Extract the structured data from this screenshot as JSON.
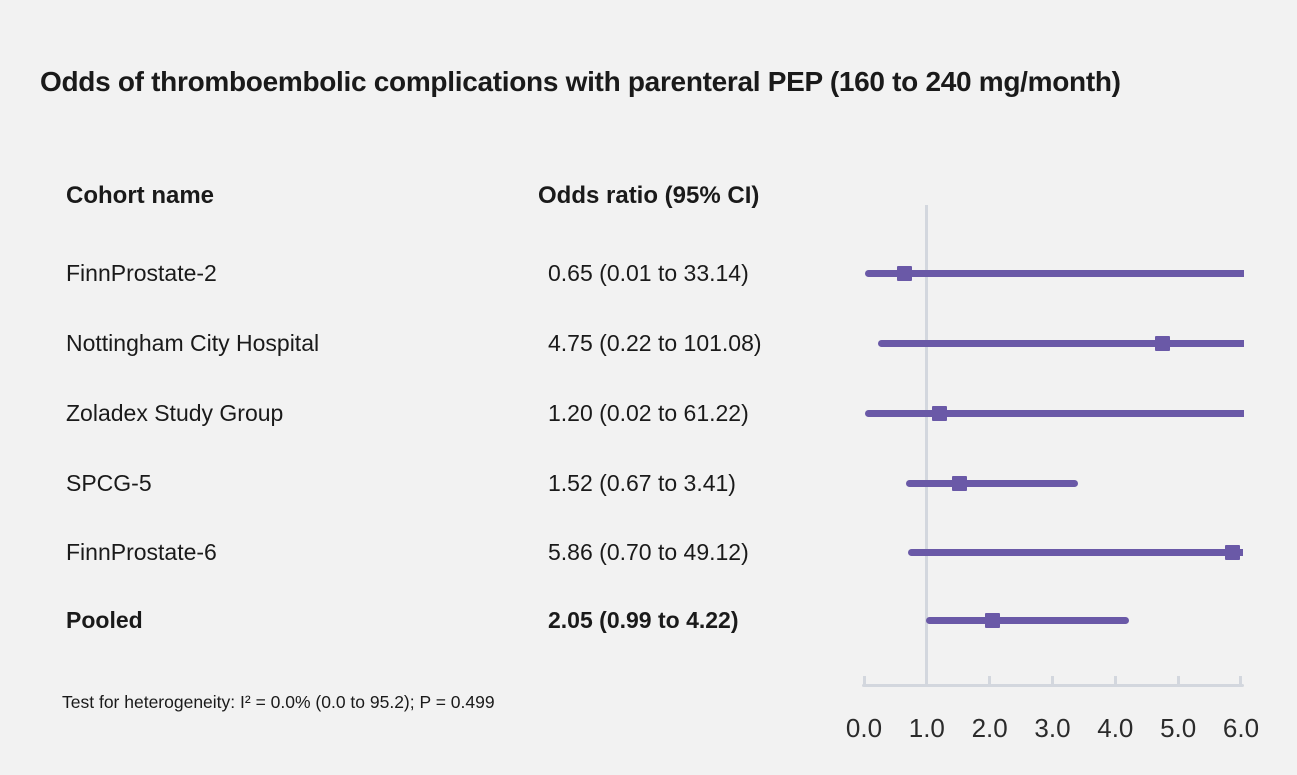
{
  "title": "Odds of thromboembolic complications with parenteral PEP (160 to 240 mg/month)",
  "table": {
    "col1_header": "Cohort name",
    "col2_header": "Odds ratio (95% CI)"
  },
  "footnote": "Test for heterogeneity: I² = 0.0% (0.0 to 95.2); P = 0.499",
  "colors": {
    "background": "#f2f2f2",
    "marker_purple": "#6a59a7",
    "axis_gray": "#d3d7de",
    "text": "#1a1a1a",
    "tick_label": "#2b2b2b"
  },
  "chart_data": {
    "type": "forest",
    "title": "Odds of thromboembolic complications with parenteral PEP (160 to 240 mg/month)",
    "xlabel": "Odds ratio",
    "xlim": [
      0.0,
      6.0
    ],
    "x_tick_values": [
      0,
      1,
      2,
      3,
      4,
      5,
      6
    ],
    "x_tick_labels": [
      "0.0",
      "1.0",
      "2.0",
      "3.0",
      "4.0",
      "5.0",
      "6.0"
    ],
    "reference_line": 1.0,
    "rows": [
      {
        "name": "FinnProstate-2",
        "label": "0.65 (0.01 to 33.14)",
        "or": 0.65,
        "lo": 0.01,
        "hi": 33.14,
        "bold": false
      },
      {
        "name": "Nottingham City Hospital",
        "label": "4.75 (0.22 to 101.08)",
        "or": 4.75,
        "lo": 0.22,
        "hi": 101.08,
        "bold": false
      },
      {
        "name": "Zoladex Study Group",
        "label": "1.20 (0.02 to 61.22)",
        "or": 1.2,
        "lo": 0.02,
        "hi": 61.22,
        "bold": false
      },
      {
        "name": "SPCG-5",
        "label": "1.52 (0.67 to 3.41)",
        "or": 1.52,
        "lo": 0.67,
        "hi": 3.41,
        "bold": false
      },
      {
        "name": "FinnProstate-6",
        "label": "5.86 (0.70 to 49.12)",
        "or": 5.86,
        "lo": 0.7,
        "hi": 49.12,
        "bold": false
      },
      {
        "name": "Pooled",
        "label": "2.05 (0.99 to 4.22)",
        "or": 2.05,
        "lo": 0.99,
        "hi": 4.22,
        "bold": true
      }
    ]
  }
}
